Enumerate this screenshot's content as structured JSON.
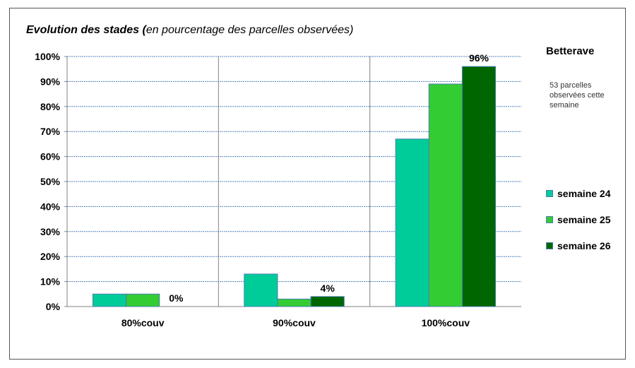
{
  "chart_data": {
    "type": "bar",
    "title": {
      "bold_part": "Evolution des stades ",
      "paren_open": "(",
      "italic_part": "en pourcentage des parcelles observées)"
    },
    "categories": [
      "80%couv",
      "90%couv",
      "100%couv"
    ],
    "series": [
      {
        "name": "semaine 24",
        "color": "#00CC99",
        "values": [
          5,
          13,
          67
        ]
      },
      {
        "name": "semaine 25",
        "color": "#33CC33",
        "values": [
          5,
          3,
          89
        ]
      },
      {
        "name": "semaine 26",
        "color": "#006600",
        "values": [
          0,
          4,
          96
        ]
      }
    ],
    "data_labels": [
      {
        "series": 2,
        "category": 0,
        "text": "0%"
      },
      {
        "series": 2,
        "category": 1,
        "text": "4%"
      },
      {
        "series": 2,
        "category": 2,
        "text": "96%"
      }
    ],
    "ylim": [
      0,
      100
    ],
    "ytick_labels": [
      "0%",
      "10%",
      "20%",
      "30%",
      "40%",
      "50%",
      "60%",
      "70%",
      "80%",
      "90%",
      "100%"
    ],
    "grid": true,
    "legend_title": "Betterave",
    "note": "53 parcelles observées cette semaine",
    "legend_placement": "right"
  }
}
